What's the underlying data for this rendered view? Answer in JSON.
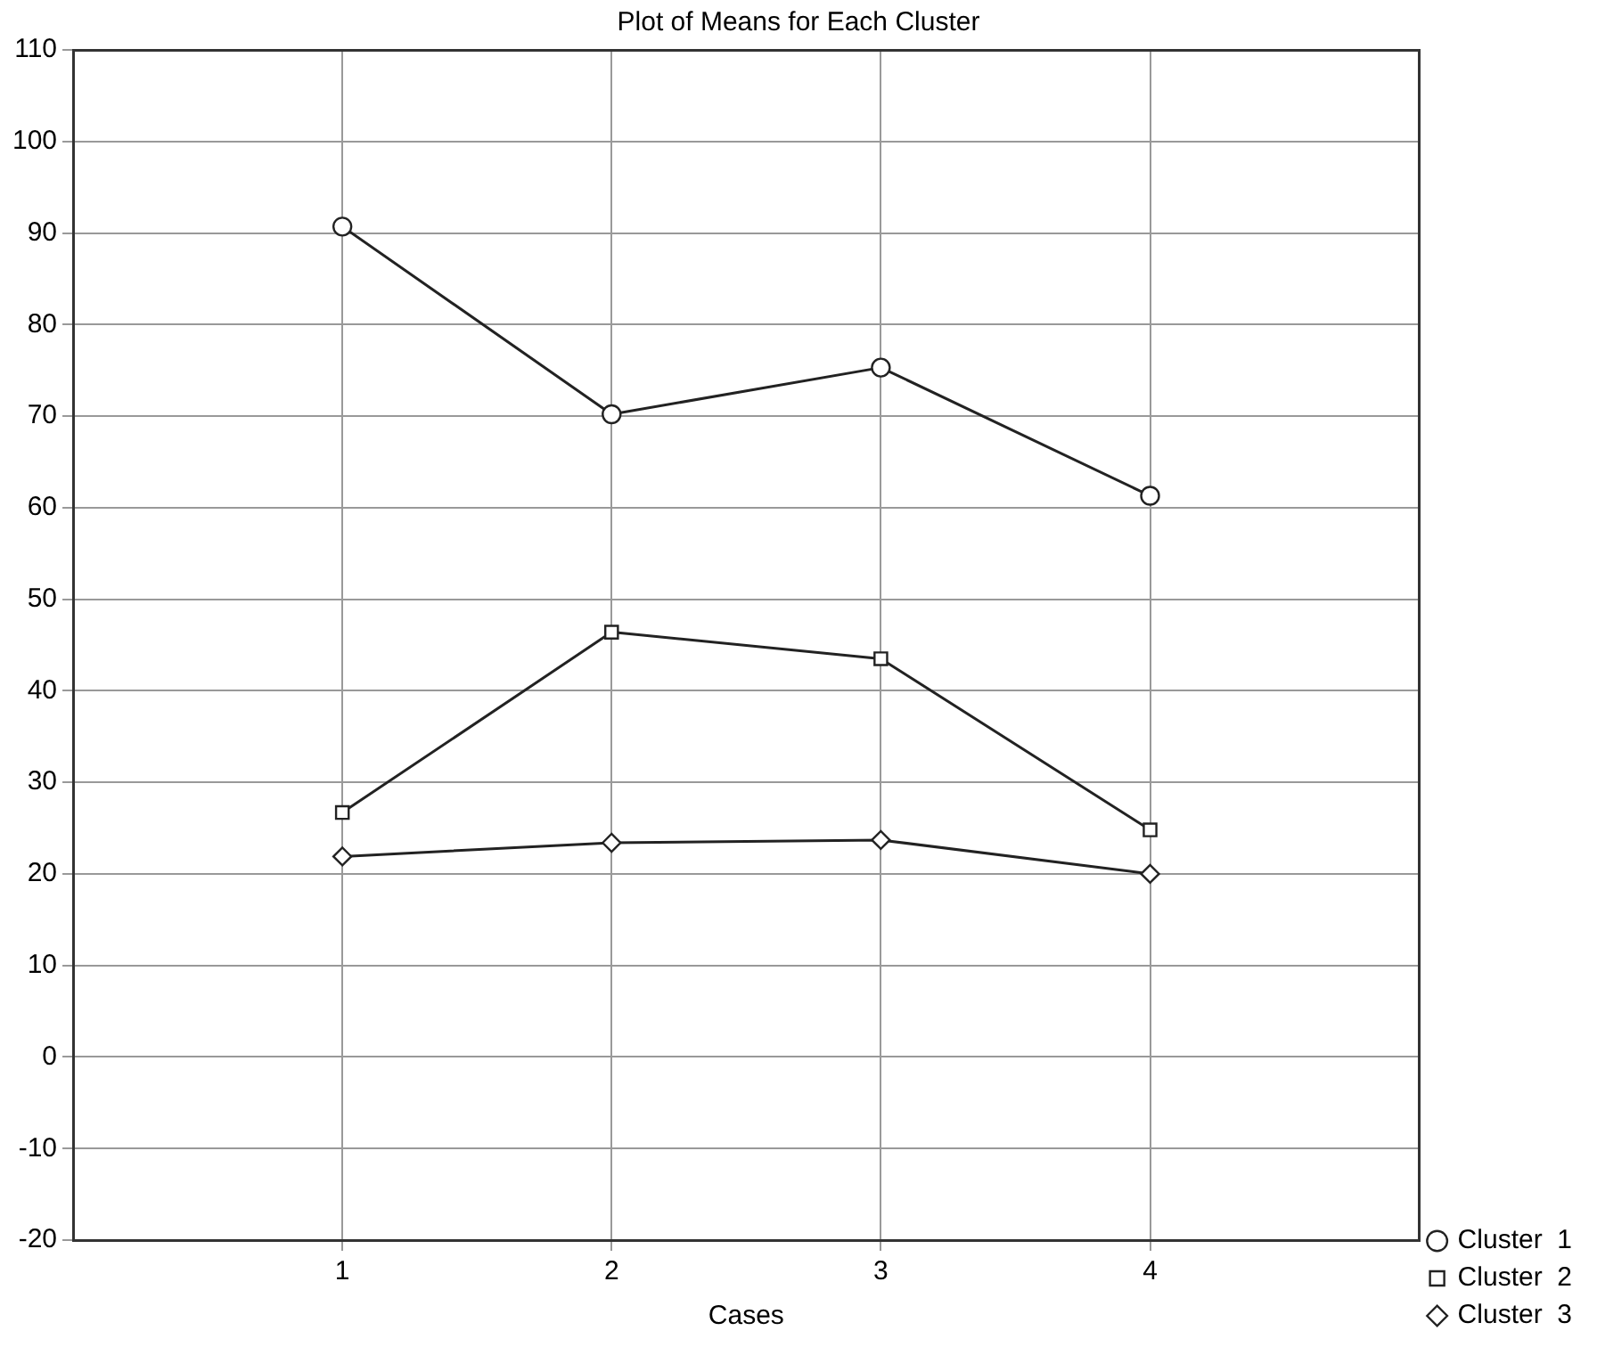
{
  "chart_data": {
    "type": "line",
    "title": "Plot of Means for Each Cluster",
    "xlabel": "Cases",
    "x": [
      1,
      2,
      3,
      4
    ],
    "series": [
      {
        "name": "Cluster  1",
        "color": "#222222",
        "marker": "circle",
        "values": [
          90.7,
          70.2,
          75.3,
          61.3
        ]
      },
      {
        "name": "Cluster  2",
        "color": "#222222",
        "marker": "square",
        "values": [
          26.7,
          46.4,
          43.5,
          24.8
        ]
      },
      {
        "name": "Cluster  3",
        "color": "#222222",
        "marker": "diamond",
        "values": [
          21.9,
          23.4,
          23.7,
          20.0
        ]
      }
    ],
    "xlim": [
      0,
      5
    ],
    "xticks": [
      1,
      2,
      3,
      4
    ],
    "ylim": [
      -20,
      110
    ],
    "yticks": [
      -20,
      -10,
      0,
      10,
      20,
      30,
      40,
      50,
      60,
      70,
      80,
      90,
      100,
      110
    ],
    "grid": true,
    "legend": "bottom right",
    "line_style": "solid"
  }
}
